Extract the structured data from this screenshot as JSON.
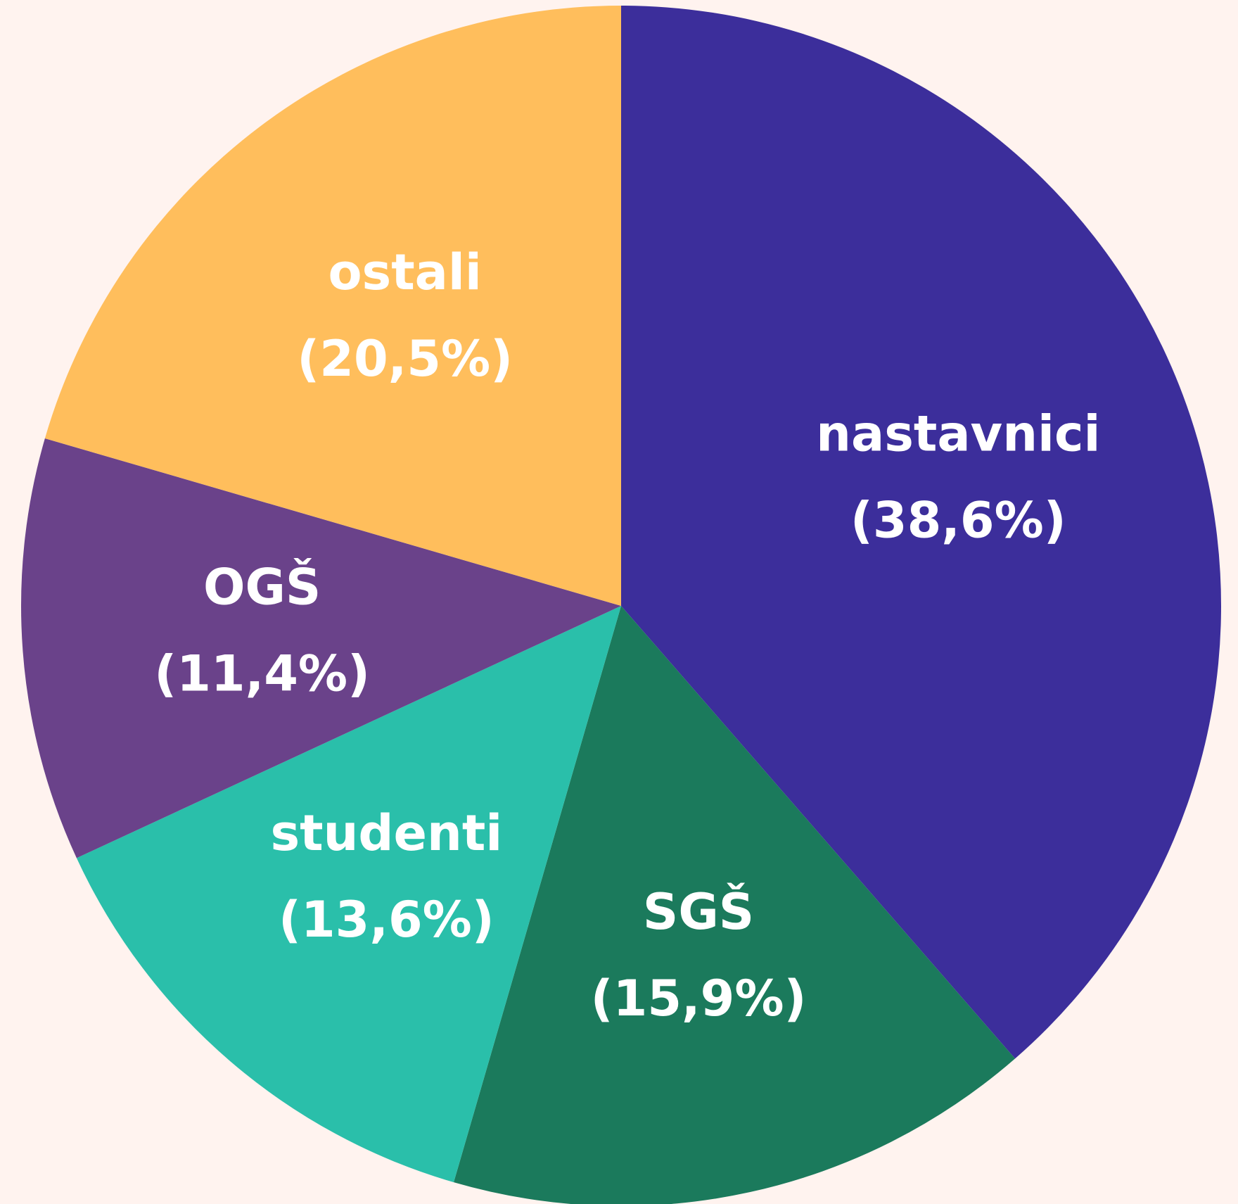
{
  "chart_data": {
    "type": "pie",
    "categories": [
      "nastavnici",
      "SGŠ",
      "studenti",
      "OGŠ",
      "ostali"
    ],
    "values": [
      38.6,
      15.9,
      13.6,
      11.4,
      20.5
    ],
    "value_labels": [
      "(38,6%)",
      "(15,9%)",
      "(13,6%)",
      "(11,4%)",
      "(20,5%)"
    ],
    "colors": [
      "#3c2e9b",
      "#1b7a5c",
      "#2abfaa",
      "#6a428a",
      "#ffbe5c"
    ]
  }
}
